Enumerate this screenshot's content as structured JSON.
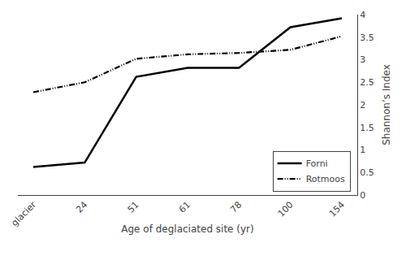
{
  "chart_data": {
    "type": "line",
    "categories": [
      "glacier",
      "24",
      "51",
      "61",
      "78",
      "100",
      "154"
    ],
    "series": [
      {
        "name": "Forni",
        "color": "#000000",
        "line_style": "solid",
        "values": [
          0.62,
          0.72,
          2.62,
          2.82,
          2.82,
          3.72,
          3.92
        ]
      },
      {
        "name": "Rotmoos",
        "color": "#000000",
        "line_style": "dashdotdot",
        "values": [
          2.28,
          2.5,
          3.02,
          3.12,
          3.15,
          3.22,
          3.52
        ]
      }
    ],
    "xlabel": "Age of deglaciated site (yr)",
    "ylabel": "Shannon’s Index",
    "ylim": [
      0,
      4.0
    ],
    "yticks": [
      0,
      0.5,
      1,
      1.5,
      2,
      2.5,
      3,
      3.5,
      4
    ],
    "grid": false,
    "legend": "lower right"
  }
}
